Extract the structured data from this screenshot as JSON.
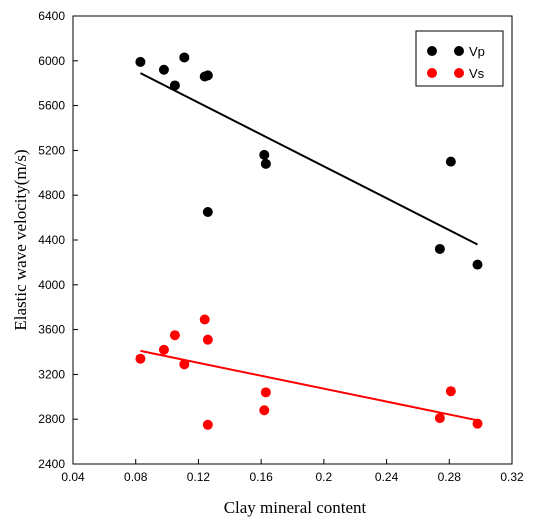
{
  "chart_data": {
    "type": "scatter",
    "title": "",
    "xlabel": "Clay mineral content",
    "ylabel": "Elastic wave velocity(m/s)",
    "xlim": [
      0.04,
      0.32
    ],
    "ylim": [
      2400,
      6400
    ],
    "xticks": [
      0.04,
      0.08,
      0.12,
      0.16,
      0.2,
      0.24,
      0.28,
      0.32
    ],
    "xtick_labels": [
      "0.04",
      "0.08",
      "0.12",
      "0.16",
      "0.2",
      "0.24",
      "0.28",
      "0.32"
    ],
    "yticks": [
      2400,
      2800,
      3200,
      3600,
      4000,
      4400,
      4800,
      5200,
      5600,
      6000,
      6400
    ],
    "ytick_labels": [
      "2400",
      "2800",
      "3200",
      "3600",
      "4000",
      "4400",
      "4800",
      "5200",
      "5600",
      "6000",
      "6400"
    ],
    "grid": false,
    "legend": "top-right",
    "series": [
      {
        "name": "Vp",
        "color": "#000000",
        "points": [
          {
            "x": 0.083,
            "y": 5990
          },
          {
            "x": 0.098,
            "y": 5920
          },
          {
            "x": 0.105,
            "y": 5780
          },
          {
            "x": 0.111,
            "y": 6030
          },
          {
            "x": 0.124,
            "y": 5860
          },
          {
            "x": 0.126,
            "y": 5870
          },
          {
            "x": 0.126,
            "y": 4650
          },
          {
            "x": 0.162,
            "y": 5160
          },
          {
            "x": 0.163,
            "y": 5080
          },
          {
            "x": 0.274,
            "y": 4320
          },
          {
            "x": 0.281,
            "y": 5100
          },
          {
            "x": 0.298,
            "y": 4180
          }
        ],
        "trend": [
          {
            "x": 0.083,
            "y": 5890
          },
          {
            "x": 0.298,
            "y": 4360
          }
        ]
      },
      {
        "name": "Vs",
        "color": "#ff0000",
        "points": [
          {
            "x": 0.083,
            "y": 3340
          },
          {
            "x": 0.098,
            "y": 3420
          },
          {
            "x": 0.105,
            "y": 3550
          },
          {
            "x": 0.111,
            "y": 3290
          },
          {
            "x": 0.124,
            "y": 3690
          },
          {
            "x": 0.126,
            "y": 3510
          },
          {
            "x": 0.126,
            "y": 2750
          },
          {
            "x": 0.162,
            "y": 2880
          },
          {
            "x": 0.163,
            "y": 3040
          },
          {
            "x": 0.274,
            "y": 2810
          },
          {
            "x": 0.281,
            "y": 3050
          },
          {
            "x": 0.298,
            "y": 2760
          }
        ],
        "trend": [
          {
            "x": 0.083,
            "y": 3410
          },
          {
            "x": 0.298,
            "y": 2790
          }
        ]
      }
    ]
  }
}
